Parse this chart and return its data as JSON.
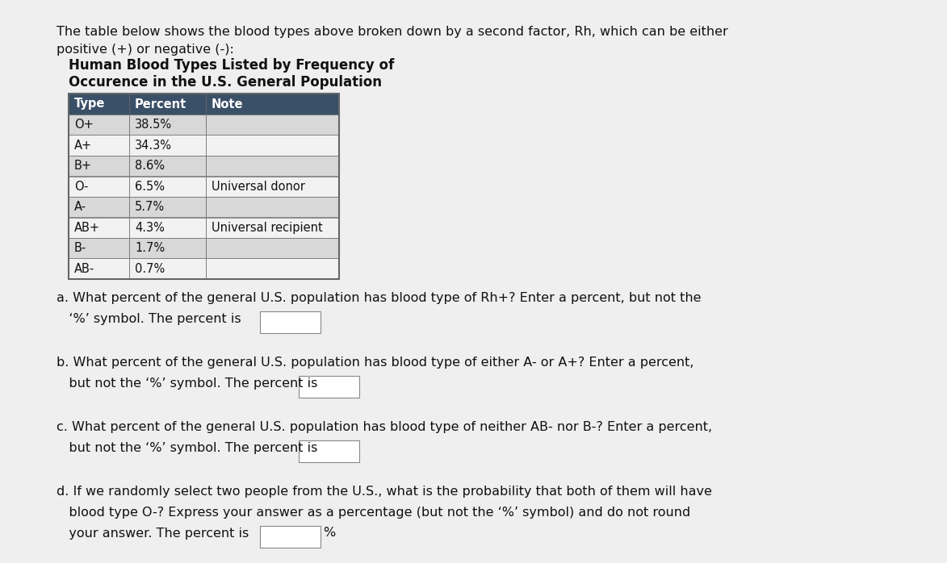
{
  "intro_line1": "The table below shows the blood types above broken down by a second factor, Rh, which can be either",
  "intro_line2": "positive (+) or negative (-):",
  "table_title_line1": "Human Blood Types Listed by Frequency of",
  "table_title_line2": "Occurence in the U.S. General Population",
  "header": [
    "Type",
    "Percent",
    "Note"
  ],
  "rows": [
    [
      "O+",
      "38.5%",
      ""
    ],
    [
      "A+",
      "34.3%",
      ""
    ],
    [
      "B+",
      "8.6%",
      ""
    ],
    [
      "O-",
      "6.5%",
      "Universal donor"
    ],
    [
      "A-",
      "5.7%",
      ""
    ],
    [
      "AB+",
      "4.3%",
      "Universal recipient"
    ],
    [
      "B-",
      "1.7%",
      ""
    ],
    [
      "AB-",
      "0.7%",
      ""
    ]
  ],
  "header_bg": "#3A5068",
  "header_fg": "#FFFFFF",
  "row_bg_odd": "#D8D8D8",
  "row_bg_even": "#F2F2F2",
  "table_border": "#666666",
  "bg_color": "#EFEFEF",
  "text_color": "#111111",
  "font_size_intro": 11.5,
  "font_size_title": 12.0,
  "font_size_table": 10.5,
  "font_size_question": 11.5,
  "qa_line1": "a. What percent of the general U.S. population has blood type of Rh+? Enter a percent, but not the",
  "qa_line2": "   ‘%’ symbol. The percent is",
  "qb_line1": "b. What percent of the general U.S. population has blood type of either A- or A+? Enter a percent,",
  "qb_line2": "   but not the ‘%’ symbol. The percent is",
  "qc_line1": "c. What percent of the general U.S. population has blood type of neither AB- nor B-? Enter a percent,",
  "qc_line2": "   but not the ‘%’ symbol. The percent is",
  "qd_line1": "d. If we randomly select two people from the U.S., what is the probability that both of them will have",
  "qd_line2": "   blood type O-? Express your answer as a percentage (but not the ‘%’ symbol) and do not round",
  "qd_line3": "   your answer. The percent is",
  "pct_symbol": "%"
}
